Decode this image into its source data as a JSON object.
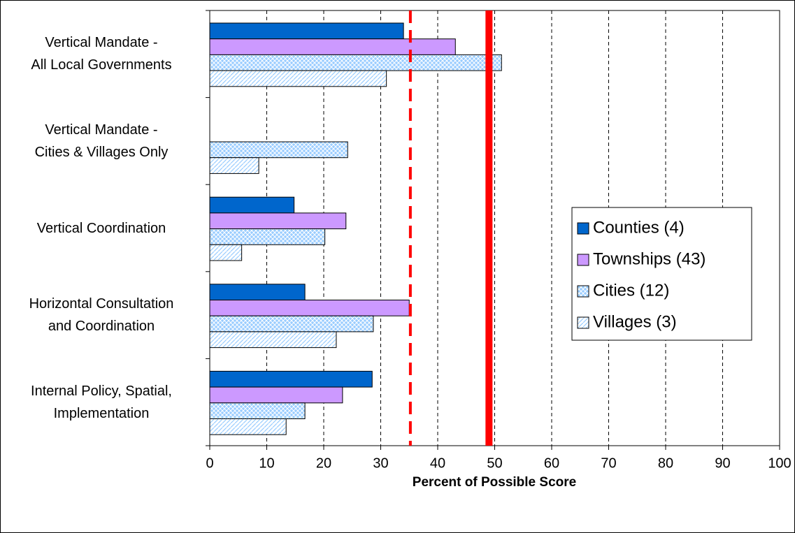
{
  "chart_data": {
    "type": "hbar",
    "categories": [
      "Vertical Mandate -\nAll Local Governments",
      "Vertical Mandate -\nCities & Villages Only",
      "Vertical Coordination",
      "Horizontal Consultation\nand Coordination",
      "Internal Policy, Spatial,\nImplementation"
    ],
    "series": [
      {
        "name": "Counties (4)",
        "color": "#0066cc",
        "values": [
          34.0,
          null,
          14.8,
          16.7,
          28.5
        ]
      },
      {
        "name": "Townships (43)",
        "color": "#cc99ff",
        "values": [
          43.1,
          null,
          23.9,
          35.0,
          23.3
        ]
      },
      {
        "name": "Cities (12)",
        "color": "#99ccff",
        "values": [
          51.2,
          24.2,
          20.2,
          28.7,
          16.7
        ]
      },
      {
        "name": "Villages (3)",
        "color": "#cce6ff",
        "values": [
          31.0,
          8.6,
          5.6,
          22.2,
          13.4
        ]
      }
    ],
    "xlabel": "Percent of Possible Score",
    "xlim": [
      0,
      100
    ],
    "xticks": [
      0,
      10,
      20,
      30,
      40,
      50,
      60,
      70,
      80,
      90,
      100
    ],
    "grid": true,
    "reference_lines": [
      {
        "value": 35.2,
        "style": "dashed",
        "color": "#ff0000"
      },
      {
        "value": 49.0,
        "style": "solid",
        "color": "#ff0000"
      }
    ]
  }
}
